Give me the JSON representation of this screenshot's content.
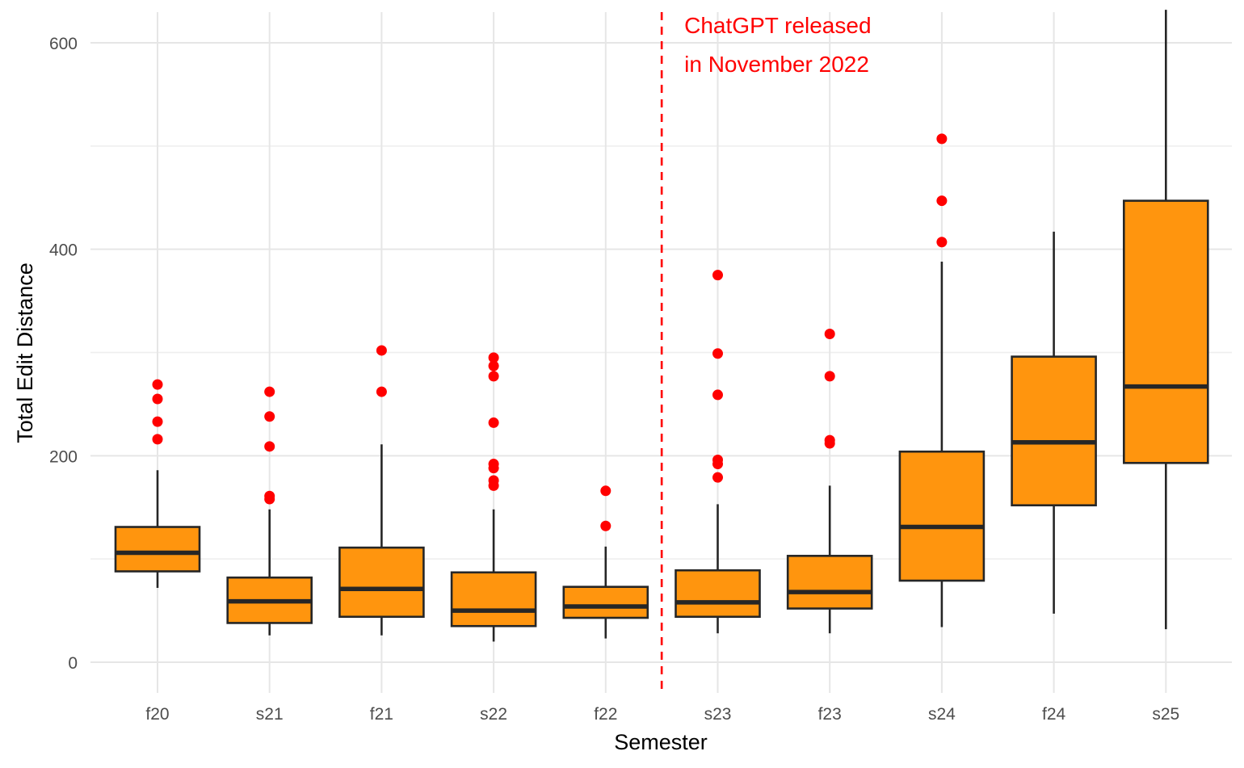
{
  "chart_data": {
    "type": "boxplot",
    "xlabel": "Semester",
    "ylabel": "Total Edit Distance",
    "ylim": [
      -30,
      632
    ],
    "y_ticks": [
      0,
      200,
      400,
      600
    ],
    "y_minor_ticks": [
      100,
      300,
      500
    ],
    "grid": true,
    "colors": {
      "box_fill": "#FF950E",
      "outlier": "#FF0000",
      "line": "#262626",
      "annotation": "#FF0000"
    },
    "annotation": {
      "at_between": [
        "f22",
        "s23"
      ],
      "lines": [
        "ChatGPT released",
        "in November 2022"
      ]
    },
    "categories": [
      "f20",
      "s21",
      "f21",
      "s22",
      "f22",
      "s23",
      "f23",
      "s24",
      "f24",
      "s25"
    ],
    "boxes": [
      {
        "label": "f20",
        "whisker_low": 72,
        "q1": 88,
        "median": 106,
        "q3": 131,
        "whisker_high": 186,
        "outliers": [
          216,
          233,
          255,
          269
        ]
      },
      {
        "label": "s21",
        "whisker_low": 26,
        "q1": 38,
        "median": 59,
        "q3": 82,
        "whisker_high": 148,
        "outliers": [
          158,
          161,
          209,
          238,
          262
        ]
      },
      {
        "label": "f21",
        "whisker_low": 26,
        "q1": 44,
        "median": 71,
        "q3": 111,
        "whisker_high": 211,
        "outliers": [
          262,
          302
        ]
      },
      {
        "label": "s22",
        "whisker_low": 20,
        "q1": 35,
        "median": 50,
        "q3": 87,
        "whisker_high": 148,
        "outliers": [
          171,
          176,
          188,
          192,
          232,
          277,
          287,
          295
        ]
      },
      {
        "label": "f22",
        "whisker_low": 23,
        "q1": 43,
        "median": 54,
        "q3": 73,
        "whisker_high": 112,
        "outliers": [
          132,
          166
        ]
      },
      {
        "label": "s23",
        "whisker_low": 28,
        "q1": 44,
        "median": 58,
        "q3": 89,
        "whisker_high": 153,
        "outliers": [
          179,
          192,
          196,
          259,
          299,
          375
        ]
      },
      {
        "label": "f23",
        "whisker_low": 28,
        "q1": 52,
        "median": 68,
        "q3": 103,
        "whisker_high": 171,
        "outliers": [
          212,
          215,
          277,
          318
        ]
      },
      {
        "label": "s24",
        "whisker_low": 34,
        "q1": 79,
        "median": 131,
        "q3": 204,
        "whisker_high": 388,
        "outliers": [
          407,
          447,
          507
        ]
      },
      {
        "label": "f24",
        "whisker_low": 47,
        "q1": 152,
        "median": 213,
        "q3": 296,
        "whisker_high": 417,
        "outliers": []
      },
      {
        "label": "s25",
        "whisker_low": 32,
        "q1": 193,
        "median": 267,
        "q3": 447,
        "whisker_high": 632,
        "outliers": []
      }
    ]
  }
}
